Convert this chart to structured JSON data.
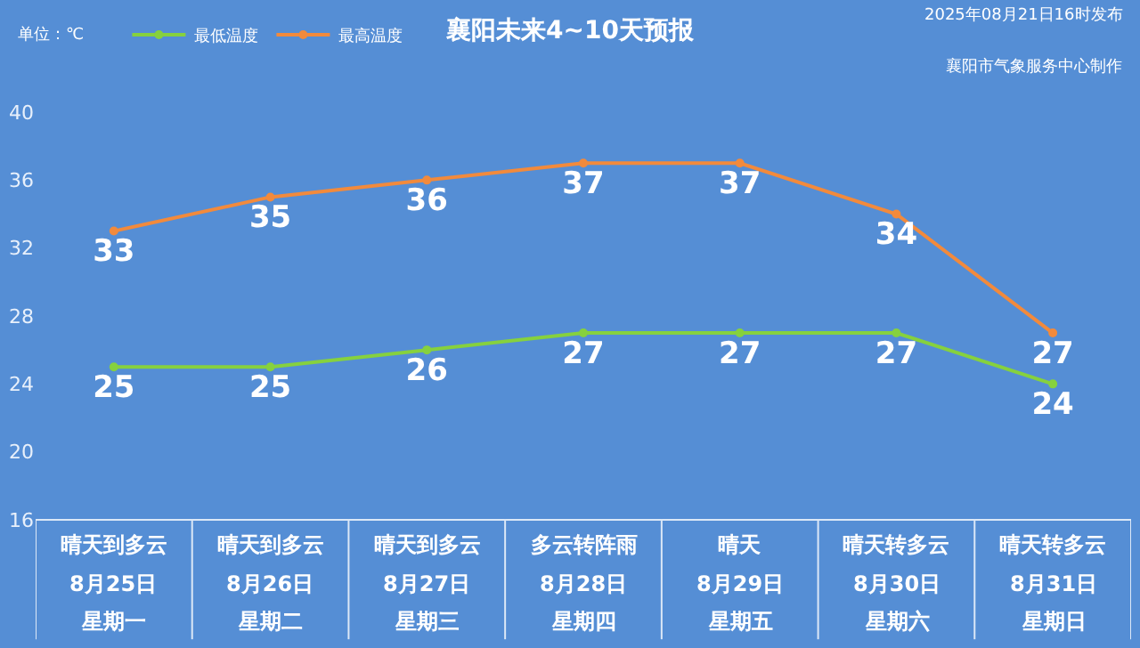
{
  "chart_data": {
    "type": "line",
    "title": "襄阳未来4~10天预报",
    "annotations": [
      "单位：℃",
      "2025年08月21日16时发布",
      "襄阳市气象服务中心制作"
    ],
    "categories": [
      "晴天到多云\n8月25日星期一",
      "晴天到多云\n8月26日星期二",
      "晴天到多云\n8月27日星期三",
      "多云转阵雨\n8月28日星期四",
      "晴天\n8月29日星期五",
      "晴天转多云\n8月30日星期六",
      "晴天转多云\n8月31日星期日"
    ],
    "series": [
      {
        "name": "最低温度",
        "color": "#86d13e",
        "values": [
          25,
          25,
          26,
          27,
          27,
          27,
          24
        ]
      },
      {
        "name": "最高温度",
        "color": "#f28a3c",
        "values": [
          33,
          35,
          36,
          37,
          37,
          34,
          27
        ]
      }
    ],
    "ylim": [
      16,
      40
    ],
    "yticks": [
      16,
      20,
      24,
      28,
      32,
      36,
      40
    ],
    "grid": false,
    "legend": "top left",
    "marker": "circle",
    "line_style": "solid",
    "data_labels": true
  }
}
